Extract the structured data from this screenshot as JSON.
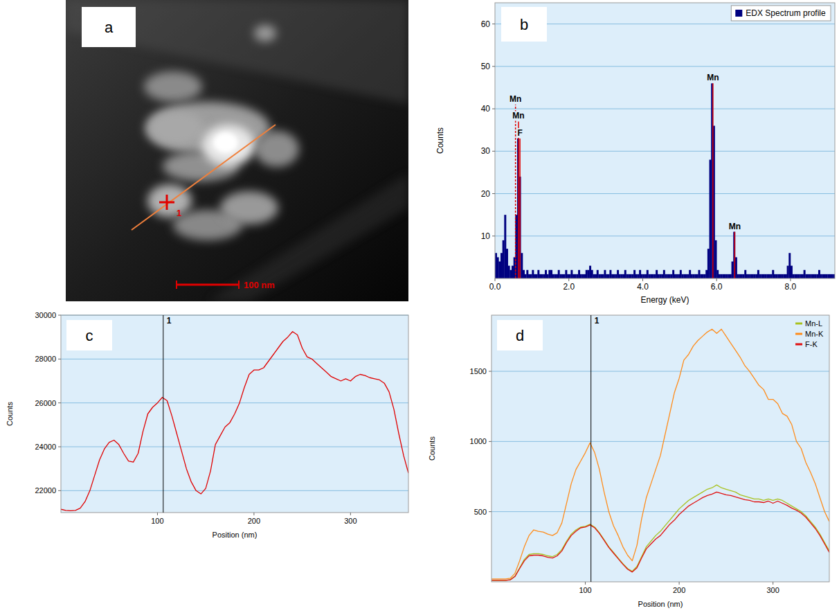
{
  "image": {
    "panel_label": "a",
    "scale_bar": {
      "label": "100 nm",
      "length": 100
    },
    "marker_label": "1"
  },
  "chart_data": [
    {
      "type": "histogram",
      "panel_label": "b",
      "x_label": "Energy (keV)",
      "y_label": "Counts",
      "bins": [
        0,
        0.05,
        0.1,
        0.15,
        0.2,
        0.25,
        0.3,
        0.35,
        0.4,
        0.45,
        0.5,
        0.55,
        0.6,
        0.65,
        0.7,
        0.75,
        0.8,
        0.85,
        0.9,
        0.95,
        1,
        1.05,
        1.1,
        1.15,
        1.2,
        1.25,
        1.3,
        1.35,
        1.4,
        1.45,
        1.5,
        1.55,
        1.6,
        1.65,
        1.7,
        1.75,
        1.8,
        1.85,
        1.9,
        1.95,
        2,
        2.05,
        2.1,
        2.15,
        2.2,
        2.25,
        2.3,
        2.35,
        2.4,
        2.45,
        2.5,
        2.55,
        2.6,
        2.65,
        2.7,
        2.75,
        2.8,
        2.85,
        2.9,
        2.95,
        3,
        3.05,
        3.1,
        3.15,
        3.2,
        3.25,
        3.3,
        3.35,
        3.4,
        3.45,
        3.5,
        3.55,
        3.6,
        3.65,
        3.7,
        3.75,
        3.8,
        3.85,
        3.9,
        3.95,
        4,
        4.05,
        4.1,
        4.15,
        4.2,
        4.25,
        4.3,
        4.35,
        4.4,
        4.45,
        4.5,
        4.55,
        4.6,
        4.65,
        4.7,
        4.75,
        4.8,
        4.85,
        4.9,
        4.95,
        5,
        5.05,
        5.1,
        5.15,
        5.2,
        5.25,
        5.3,
        5.35,
        5.4,
        5.45,
        5.5,
        5.55,
        5.6,
        5.65,
        5.7,
        5.75,
        5.8,
        5.85,
        5.9,
        5.95,
        6,
        6.05,
        6.1,
        6.15,
        6.2,
        6.25,
        6.3,
        6.35,
        6.4,
        6.45,
        6.5,
        6.55,
        6.6,
        6.65,
        6.7,
        6.75,
        6.8,
        6.85,
        6.9,
        6.95,
        7,
        7.05,
        7.1,
        7.15,
        7.2,
        7.25,
        7.3,
        7.35,
        7.4,
        7.45,
        7.5,
        7.55,
        7.6,
        7.65,
        7.7,
        7.75,
        7.8,
        7.85,
        7.9,
        7.95,
        8,
        8.05,
        8.1,
        8.15,
        8.2,
        8.25,
        8.3,
        8.35,
        8.4,
        8.45,
        8.5,
        8.55,
        8.6,
        8.65,
        8.7,
        8.75,
        8.8,
        8.85,
        8.9,
        8.95,
        9,
        9.05,
        9.1,
        9.15,
        9.2
      ],
      "series": [
        {
          "name": "EDX Spectrum profile",
          "color": "#000080",
          "values": [
            6,
            5,
            4,
            6,
            9,
            15,
            7,
            3,
            2,
            3,
            5,
            15,
            33,
            24,
            6,
            2,
            1,
            2,
            1,
            1,
            2,
            1,
            1,
            2,
            1,
            1,
            1,
            2,
            1,
            2,
            2,
            1,
            1,
            1,
            2,
            1,
            1,
            1,
            2,
            1,
            1,
            2,
            1,
            1,
            1,
            2,
            1,
            1,
            1,
            2,
            2,
            3,
            2,
            1,
            1,
            2,
            1,
            1,
            1,
            2,
            1,
            1,
            2,
            1,
            1,
            1,
            2,
            1,
            1,
            1,
            2,
            1,
            1,
            1,
            1,
            2,
            1,
            1,
            2,
            1,
            1,
            1,
            2,
            1,
            1,
            1,
            1,
            2,
            1,
            1,
            1,
            2,
            1,
            1,
            1,
            1,
            2,
            1,
            1,
            1,
            2,
            1,
            1,
            1,
            1,
            2,
            1,
            1,
            1,
            1,
            2,
            1,
            1,
            1,
            2,
            7,
            28,
            46,
            36,
            9,
            2,
            1,
            1,
            1,
            1,
            1,
            1,
            1,
            4,
            11,
            5,
            1,
            1,
            1,
            1,
            2,
            1,
            1,
            1,
            1,
            1,
            1,
            2,
            1,
            1,
            1,
            1,
            1,
            1,
            1,
            2,
            1,
            1,
            1,
            1,
            1,
            1,
            1,
            3,
            6,
            3,
            1,
            1,
            1,
            1,
            1,
            1,
            2,
            1,
            1,
            1,
            1,
            1,
            1,
            1,
            2,
            1,
            1,
            1,
            1,
            1,
            1,
            1,
            1
          ]
        }
      ],
      "xlim": [
        0,
        9.2
      ],
      "ylim": [
        0,
        65
      ],
      "xticks": [
        {
          "value": 0,
          "label": "0.0"
        },
        {
          "value": 2,
          "label": "2.0"
        },
        {
          "value": 4,
          "label": "4.0"
        },
        {
          "value": 6,
          "label": "6.0"
        },
        {
          "value": 8,
          "label": "8.0"
        }
      ],
      "yticks": [
        10,
        20,
        30,
        40,
        50,
        60
      ],
      "grid": true,
      "legend": "top-right",
      "annotations": [
        {
          "text": "Mn",
          "x": 0.556,
          "y": 41,
          "line_style": "dashed"
        },
        {
          "text": "Mn",
          "x": 0.637,
          "y": 37,
          "line_style": "solid"
        },
        {
          "text": "F",
          "x": 0.677,
          "y": 33,
          "line_style": "solid"
        },
        {
          "text": "Mn",
          "x": 5.899,
          "y": 46,
          "line_style": "solid"
        },
        {
          "text": "Mn",
          "x": 6.49,
          "y": 11,
          "line_style": "solid"
        }
      ]
    },
    {
      "type": "line",
      "panel_label": "c",
      "x_label": "Position (nm)",
      "y_label": "Counts",
      "x": [
        0,
        5,
        10,
        15,
        20,
        25,
        30,
        35,
        40,
        45,
        50,
        55,
        60,
        65,
        70,
        75,
        80,
        85,
        90,
        95,
        100,
        105,
        110,
        115,
        120,
        125,
        130,
        135,
        140,
        145,
        150,
        155,
        160,
        165,
        170,
        175,
        180,
        185,
        190,
        195,
        200,
        205,
        210,
        215,
        220,
        225,
        230,
        235,
        240,
        245,
        250,
        255,
        260,
        265,
        270,
        275,
        280,
        285,
        290,
        295,
        300,
        305,
        310,
        315,
        320,
        325,
        330,
        335,
        340,
        345,
        350,
        355,
        360
      ],
      "values": [
        21150,
        21100,
        21080,
        21100,
        21200,
        21500,
        22000,
        22700,
        23400,
        23900,
        24200,
        24300,
        24100,
        23700,
        23350,
        23300,
        23700,
        24700,
        25500,
        25800,
        26000,
        26250,
        26100,
        25400,
        24600,
        23800,
        23000,
        22400,
        22000,
        21850,
        22100,
        22900,
        24100,
        24500,
        24900,
        25100,
        25500,
        26000,
        26700,
        27300,
        27500,
        27500,
        27600,
        27900,
        28200,
        28500,
        28800,
        29000,
        29250,
        29100,
        28500,
        28100,
        28000,
        27800,
        27600,
        27400,
        27200,
        27100,
        27000,
        27100,
        27000,
        27200,
        27300,
        27250,
        27150,
        27100,
        27050,
        26900,
        26500,
        25700,
        24600,
        23600,
        22800
      ],
      "color": "#e00000",
      "xlim": [
        0,
        360
      ],
      "ylim": [
        21000,
        30000
      ],
      "xticks": [
        100,
        200,
        300
      ],
      "yticks": [
        22000,
        24000,
        26000,
        28000,
        30000
      ],
      "grid": true,
      "markers": [
        {
          "label": "1",
          "x": 106
        }
      ]
    },
    {
      "type": "line",
      "panel_label": "d",
      "x_label": "Position (nm)",
      "y_label": "Counts",
      "x": [
        0,
        5,
        10,
        15,
        20,
        25,
        30,
        35,
        40,
        45,
        50,
        55,
        60,
        65,
        70,
        75,
        80,
        85,
        90,
        95,
        100,
        105,
        110,
        115,
        120,
        125,
        130,
        135,
        140,
        145,
        150,
        155,
        160,
        165,
        170,
        175,
        180,
        185,
        190,
        195,
        200,
        205,
        210,
        215,
        220,
        225,
        230,
        235,
        240,
        245,
        250,
        255,
        260,
        265,
        270,
        275,
        280,
        285,
        290,
        295,
        300,
        305,
        310,
        315,
        320,
        325,
        330,
        335,
        340,
        345,
        350,
        355,
        360
      ],
      "series": [
        {
          "name": "Mn-L",
          "color": "#a8c21e",
          "values": [
            10,
            10,
            10,
            10,
            15,
            40,
            100,
            160,
            195,
            200,
            200,
            195,
            185,
            180,
            195,
            230,
            290,
            340,
            370,
            390,
            395,
            410,
            390,
            350,
            300,
            250,
            210,
            170,
            130,
            95,
            75,
            110,
            180,
            250,
            290,
            330,
            360,
            400,
            440,
            480,
            520,
            550,
            580,
            600,
            620,
            640,
            660,
            670,
            690,
            670,
            660,
            650,
            640,
            620,
            610,
            600,
            590,
            590,
            580,
            590,
            580,
            590,
            580,
            560,
            540,
            520,
            500,
            470,
            430,
            390,
            340,
            280,
            220
          ]
        },
        {
          "name": "Mn-K",
          "color": "#ff8c1a",
          "values": [
            20,
            20,
            20,
            20,
            25,
            60,
            150,
            250,
            330,
            370,
            360,
            355,
            340,
            330,
            350,
            420,
            560,
            700,
            800,
            860,
            920,
            990,
            920,
            800,
            640,
            500,
            400,
            330,
            250,
            190,
            150,
            260,
            450,
            600,
            700,
            800,
            900,
            1050,
            1200,
            1350,
            1450,
            1580,
            1620,
            1680,
            1720,
            1750,
            1780,
            1800,
            1770,
            1800,
            1750,
            1700,
            1650,
            1600,
            1540,
            1500,
            1450,
            1400,
            1370,
            1300,
            1300,
            1270,
            1200,
            1180,
            1120,
            1000,
            950,
            850,
            780,
            700,
            600,
            500,
            430
          ]
        },
        {
          "name": "F-K",
          "color": "#e01010",
          "values": [
            10,
            10,
            10,
            10,
            14,
            38,
            95,
            150,
            185,
            190,
            190,
            185,
            175,
            170,
            185,
            220,
            280,
            330,
            360,
            385,
            390,
            405,
            385,
            345,
            295,
            245,
            205,
            165,
            125,
            90,
            70,
            100,
            170,
            235,
            270,
            305,
            330,
            370,
            410,
            440,
            480,
            510,
            540,
            560,
            580,
            600,
            615,
            625,
            640,
            630,
            620,
            615,
            605,
            595,
            585,
            580,
            570,
            570,
            565,
            575,
            560,
            575,
            560,
            545,
            525,
            510,
            490,
            460,
            420,
            380,
            330,
            270,
            210
          ]
        }
      ],
      "xlim": [
        0,
        360
      ],
      "ylim": [
        0,
        1900
      ],
      "xticks": [
        100,
        200,
        300
      ],
      "yticks": [
        500,
        1000,
        1500
      ],
      "grid": true,
      "legend": "top-right",
      "markers": [
        {
          "label": "1",
          "x": 106
        }
      ]
    }
  ]
}
